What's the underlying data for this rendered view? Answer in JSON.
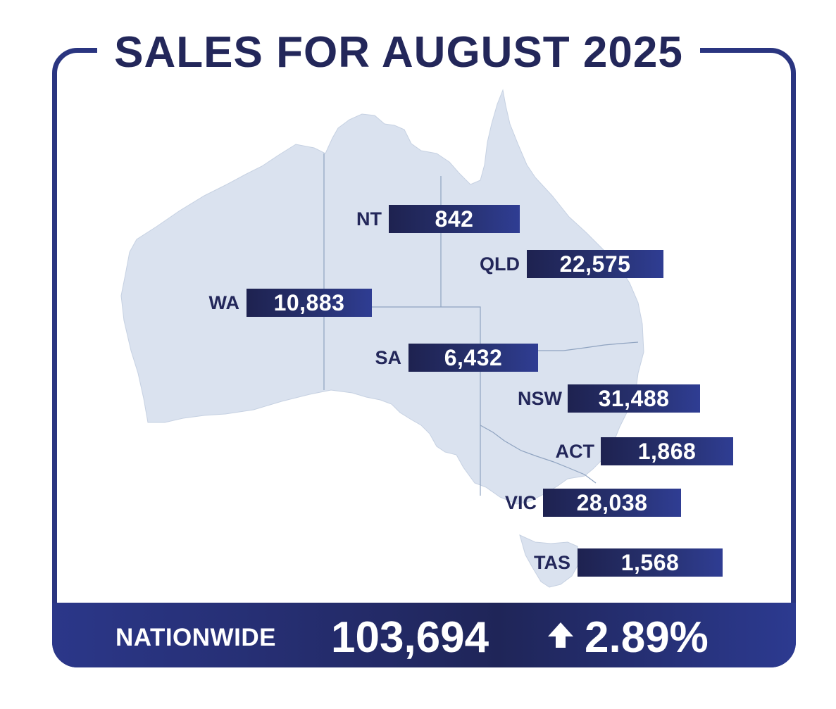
{
  "title": "SALES FOR AUGUST 2025",
  "states": [
    {
      "label": "NT",
      "value": "842"
    },
    {
      "label": "QLD",
      "value": "22,575"
    },
    {
      "label": "WA",
      "value": "10,883"
    },
    {
      "label": "SA",
      "value": "6,432"
    },
    {
      "label": "NSW",
      "value": "31,488"
    },
    {
      "label": "ACT",
      "value": "1,868"
    },
    {
      "label": "VIC",
      "value": "28,038"
    },
    {
      "label": "TAS",
      "value": "1,568"
    }
  ],
  "nationwide": {
    "label": "NATIONWIDE",
    "value": "103,694",
    "trend_icon": "arrow-up-icon",
    "change": "2.89%"
  },
  "colors": {
    "navy": "#23275a",
    "frame": "#2a3580",
    "map_fill": "#dae2ef",
    "map_lines": "#8fa3c0"
  }
}
